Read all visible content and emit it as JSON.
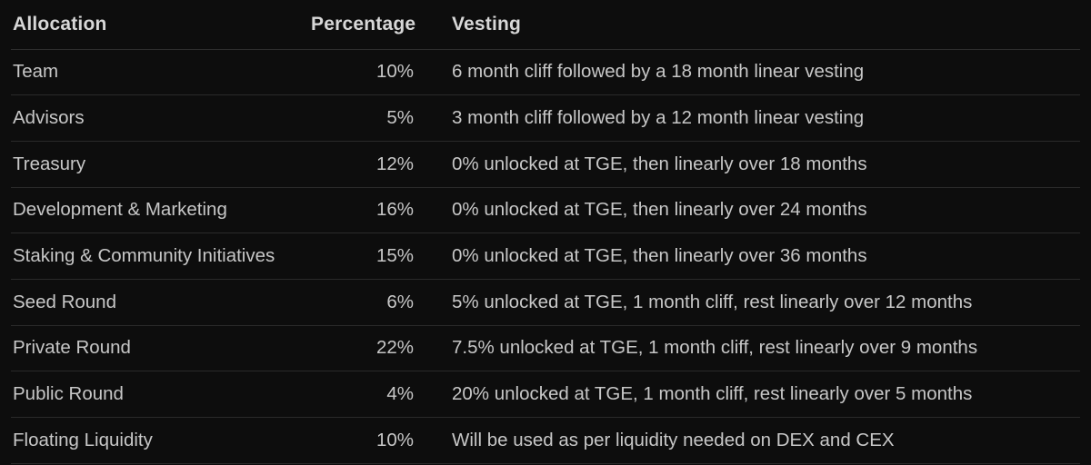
{
  "colors": {
    "background": "#0d0d0d",
    "header_text": "#d7d7d7",
    "body_text": "#c7c7c7",
    "divider": "#2a2a2a"
  },
  "table": {
    "columns": [
      {
        "key": "allocation",
        "label": "Allocation",
        "align": "left"
      },
      {
        "key": "percentage",
        "label": "Percentage",
        "align": "right"
      },
      {
        "key": "vesting",
        "label": "Vesting",
        "align": "left"
      }
    ],
    "rows": [
      {
        "allocation": "Team",
        "percentage": "10%",
        "vesting": "6 month cliff followed by a 18 month linear vesting"
      },
      {
        "allocation": "Advisors",
        "percentage": "5%",
        "vesting": "3 month cliff followed by a 12 month linear vesting"
      },
      {
        "allocation": "Treasury",
        "percentage": "12%",
        "vesting": "0% unlocked at TGE, then linearly over 18 months"
      },
      {
        "allocation": "Development & Marketing",
        "percentage": "16%",
        "vesting": "0% unlocked at TGE, then linearly over 24 months"
      },
      {
        "allocation": "Staking & Community Initiatives",
        "percentage": "15%",
        "vesting": "0% unlocked at TGE, then linearly over 36 months"
      },
      {
        "allocation": "Seed Round",
        "percentage": "6%",
        "vesting": "5% unlocked at TGE, 1 month cliff, rest linearly over 12 months"
      },
      {
        "allocation": "Private Round",
        "percentage": "22%",
        "vesting": "7.5% unlocked at TGE, 1 month cliff, rest linearly over 9 months"
      },
      {
        "allocation": "Public Round",
        "percentage": "4%",
        "vesting": "20% unlocked at TGE, 1 month cliff, rest linearly over 5 months"
      },
      {
        "allocation": "Floating Liquidity",
        "percentage": "10%",
        "vesting": "Will be used as per liquidity needed on DEX and CEX"
      }
    ]
  }
}
